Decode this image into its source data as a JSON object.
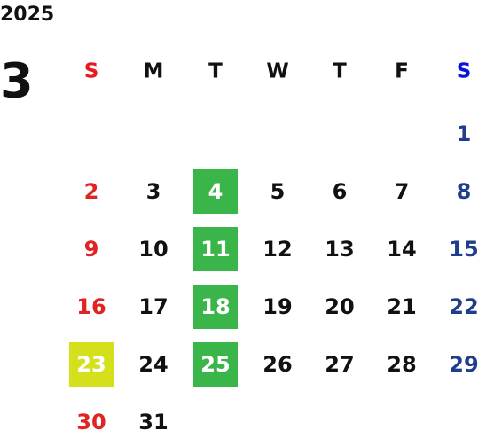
{
  "header": {
    "year": "2025",
    "month": 3
  },
  "columns": [
    {
      "label": "S",
      "color": "#e8191f",
      "day_color": "#e02424"
    },
    {
      "label": "M",
      "color": "#111111",
      "day_color": "#111111"
    },
    {
      "label": "T",
      "color": "#111111",
      "day_color": "#111111"
    },
    {
      "label": "W",
      "color": "#111111",
      "day_color": "#111111"
    },
    {
      "label": "T",
      "color": "#111111",
      "day_color": "#111111"
    },
    {
      "label": "F",
      "color": "#111111",
      "day_color": "#111111"
    },
    {
      "label": "S",
      "color": "#0a14d8",
      "day_color": "#1f3d8f"
    }
  ],
  "weeks": [
    [
      null,
      null,
      null,
      null,
      null,
      null,
      {
        "day": 1
      }
    ],
    [
      {
        "day": 2
      },
      {
        "day": 3
      },
      {
        "day": 4,
        "background": "#3ab54a",
        "text_color": "#ffffff"
      },
      {
        "day": 5
      },
      {
        "day": 6
      },
      {
        "day": 7
      },
      {
        "day": 8
      }
    ],
    [
      {
        "day": 9
      },
      {
        "day": 10
      },
      {
        "day": 11,
        "background": "#3ab54a",
        "text_color": "#ffffff"
      },
      {
        "day": 12
      },
      {
        "day": 13
      },
      {
        "day": 14
      },
      {
        "day": 15
      }
    ],
    [
      {
        "day": 16
      },
      {
        "day": 17
      },
      {
        "day": 18,
        "background": "#3ab54a",
        "text_color": "#ffffff"
      },
      {
        "day": 19
      },
      {
        "day": 20
      },
      {
        "day": 21
      },
      {
        "day": 22
      }
    ],
    [
      {
        "day": 23,
        "background": "#d5e01c",
        "text_color": "#ffffff"
      },
      {
        "day": 24
      },
      {
        "day": 25,
        "background": "#3ab54a",
        "text_color": "#ffffff"
      },
      {
        "day": 26
      },
      {
        "day": 27
      },
      {
        "day": 28
      },
      {
        "day": 29
      }
    ],
    [
      {
        "day": 30
      },
      {
        "day": 31
      },
      null,
      null,
      null,
      null,
      null
    ]
  ]
}
